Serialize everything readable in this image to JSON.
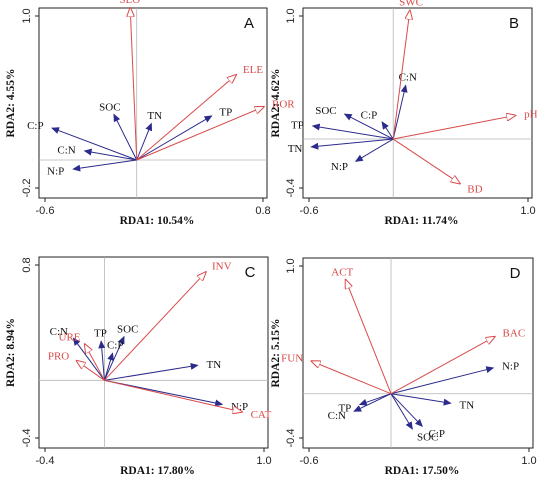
{
  "chart_data": [
    {
      "type": "scatter",
      "panel": "A",
      "xlabel": "RDA1: 10.54%",
      "ylabel": "RDA2: 4.55%",
      "xlim": [
        -0.6,
        0.8
      ],
      "ylim": [
        -0.25,
        1.0
      ],
      "xticks": [
        "-0.6",
        "0.8"
      ],
      "yticks": [
        "1.0",
        "-0.2"
      ],
      "colors": {
        "environment": "#d94a4a",
        "soil": "#2b2b8c",
        "axis": "#222222",
        "zero_line": "#b5b5b5"
      },
      "env_vectors": [
        {
          "label": "SLO",
          "x": -0.04,
          "y": 1.0
        },
        {
          "label": "ELE",
          "x": 0.61,
          "y": 0.56
        },
        {
          "label": "ROR",
          "x": 0.78,
          "y": 0.35
        }
      ],
      "soil_vectors": [
        {
          "label": "C:P",
          "x": -0.52,
          "y": 0.21
        },
        {
          "label": "C:N",
          "x": -0.32,
          "y": 0.06
        },
        {
          "label": "SOC",
          "x": -0.14,
          "y": 0.3
        },
        {
          "label": "TN",
          "x": 0.09,
          "y": 0.24
        },
        {
          "label": "TP",
          "x": 0.46,
          "y": 0.29
        },
        {
          "label": "N:P",
          "x": -0.39,
          "y": -0.06
        }
      ]
    },
    {
      "type": "scatter",
      "panel": "B",
      "xlabel": "RDA1: 11.74%",
      "ylabel": "RDA2: 4.62%",
      "xlim": [
        -0.65,
        1.0
      ],
      "ylim": [
        -0.45,
        1.0
      ],
      "xticks": [
        "-0.6",
        "1.0"
      ],
      "yticks": [
        "1.0",
        "-0.4"
      ],
      "colors": {
        "environment": "#d94a4a",
        "soil": "#2b2b8c",
        "axis": "#222222",
        "zero_line": "#b5b5b5"
      },
      "env_vectors": [
        {
          "label": "SWC",
          "x": 0.12,
          "y": 0.98
        },
        {
          "label": "pH",
          "x": 0.88,
          "y": 0.18
        },
        {
          "label": "BD",
          "x": 0.48,
          "y": -0.34
        }
      ],
      "soil_vectors": [
        {
          "label": "C:N",
          "x": 0.09,
          "y": 0.41
        },
        {
          "label": "SOC",
          "x": -0.35,
          "y": 0.19
        },
        {
          "label": "C:P",
          "x": -0.08,
          "y": 0.13
        },
        {
          "label": "TP",
          "x": -0.58,
          "y": 0.1
        },
        {
          "label": "TN",
          "x": -0.59,
          "y": -0.06
        },
        {
          "label": "N:P",
          "x": -0.27,
          "y": -0.17
        }
      ]
    },
    {
      "type": "scatter",
      "panel": "C",
      "xlabel": "RDA1: 17.80%",
      "ylabel": "RDA2: 8.94%",
      "xlim": [
        -0.4,
        1.0
      ],
      "ylim": [
        -0.45,
        0.82
      ],
      "xticks": [
        "-0.4",
        "1.0"
      ],
      "yticks": [
        "0.8",
        "-0.4"
      ],
      "colors": {
        "environment": "#d94a4a",
        "soil": "#2b2b8c",
        "axis": "#222222",
        "zero_line": "#b5b5b5"
      },
      "env_vectors": [
        {
          "label": "INV",
          "x": 0.62,
          "y": 0.72
        },
        {
          "label": "URE",
          "x": -0.12,
          "y": 0.24
        },
        {
          "label": "PRO",
          "x": -0.17,
          "y": 0.13
        },
        {
          "label": "CAT",
          "x": 0.84,
          "y": -0.21
        }
      ],
      "soil_vectors": [
        {
          "label": "C:N",
          "x": -0.19,
          "y": 0.28
        },
        {
          "label": "TP",
          "x": -0.02,
          "y": 0.26
        },
        {
          "label": "SOC",
          "x": 0.12,
          "y": 0.29
        },
        {
          "label": "C:P",
          "x": 0.05,
          "y": 0.18
        },
        {
          "label": "TN",
          "x": 0.57,
          "y": 0.1
        },
        {
          "label": "N:P",
          "x": 0.72,
          "y": -0.16
        }
      ]
    },
    {
      "type": "scatter",
      "panel": "D",
      "xlabel": "RDA1: 17.50%",
      "ylabel": "RDA2: 5.15%",
      "xlim": [
        -0.62,
        1.0
      ],
      "ylim": [
        -0.4,
        1.0
      ],
      "xticks": [
        "-0.6",
        "1.0"
      ],
      "yticks": [
        "1.0",
        "-0.4"
      ],
      "colors": {
        "environment": "#d94a4a",
        "soil": "#2b2b8c",
        "axis": "#222222",
        "zero_line": "#b5b5b5"
      },
      "env_vectors": [
        {
          "label": "ACT",
          "x": -0.32,
          "y": 0.84
        },
        {
          "label": "BAC",
          "x": 0.73,
          "y": 0.42
        },
        {
          "label": "FUN",
          "x": -0.56,
          "y": 0.24
        }
      ],
      "soil_vectors": [
        {
          "label": "N:P",
          "x": 0.72,
          "y": 0.19
        },
        {
          "label": "TP",
          "x": -0.22,
          "y": -0.08
        },
        {
          "label": "TN",
          "x": 0.42,
          "y": -0.07
        },
        {
          "label": "C:N",
          "x": -0.26,
          "y": -0.13
        },
        {
          "label": "SOC",
          "x": 0.15,
          "y": -0.26
        },
        {
          "label": "C:P",
          "x": 0.22,
          "y": -0.24
        }
      ]
    }
  ]
}
